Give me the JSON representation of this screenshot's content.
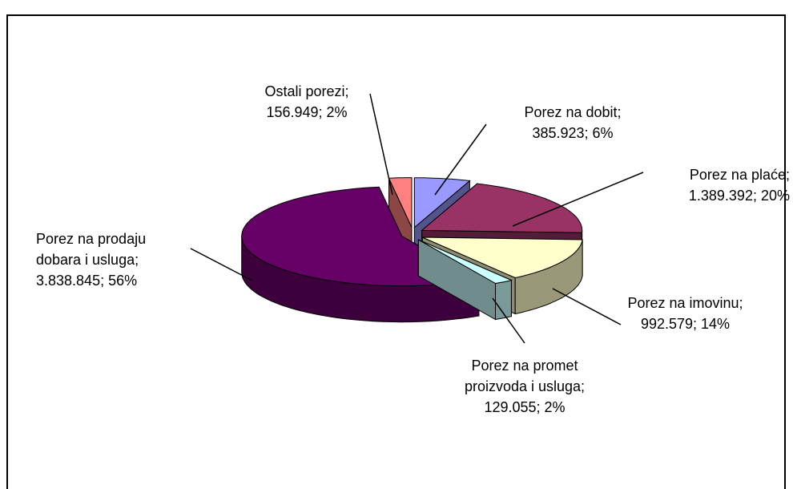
{
  "chart_data": {
    "type": "pie3d",
    "categories": [
      "Porez na dobit",
      "Porez na plaće",
      "Porez na imovinu",
      "Porez na promet proizvoda i usluga",
      "Porez na prodaju dobara i usluga",
      "Ostali porezi"
    ],
    "values": [
      385923,
      1389392,
      992579,
      129055,
      3838845,
      156949
    ],
    "value_labels": [
      "385.923",
      "1.389.392",
      "992.579",
      "129.055",
      "3.838.845",
      "156.949"
    ],
    "percents": [
      6,
      20,
      14,
      2,
      56,
      2
    ],
    "percent_labels": [
      "6%",
      "20%",
      "14%",
      "2%",
      "56%",
      "2%"
    ],
    "label_separator": "; ",
    "colors": [
      "#9999ff",
      "#993366",
      "#ffffcc",
      "#ccffff",
      "#660066",
      "#ff8080"
    ]
  }
}
